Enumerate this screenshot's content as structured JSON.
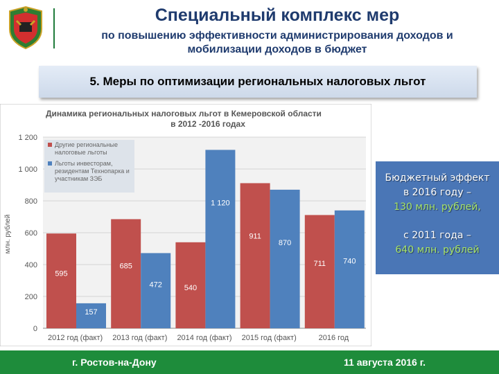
{
  "header": {
    "title": "Специальный комплекс мер",
    "subtitle": "по повышению эффективности администрирования доходов и мобилизации доходов в бюджет"
  },
  "banner": {
    "label": "5. Меры по оптимизации региональных налоговых льгот"
  },
  "chart_data": {
    "type": "bar",
    "title_line1": "Динамика региональных налоговых льгот в Кемеровской области",
    "title_line2": "в 2012 -2016 годах",
    "ylabel": "млн. рублей",
    "ylim": [
      0,
      1200
    ],
    "yticks": [
      "0",
      "200",
      "400",
      "600",
      "800",
      "1 000",
      "1 200"
    ],
    "categories": [
      "2012 год (факт)",
      "2013 год (факт)",
      "2014 год (факт)",
      "2015 год (факт)",
      "2016 год"
    ],
    "series": [
      {
        "name": "Другие региональные налоговые льготы",
        "values": [
          595,
          685,
          540,
          911,
          711
        ],
        "labels": [
          "595",
          "685",
          "540",
          "911",
          "711"
        ],
        "color": "#c0504d"
      },
      {
        "name": "Льготы инвесторам, резидентам Технопарка и участникам ЗЭБ",
        "values": [
          157,
          472,
          1120,
          870,
          740
        ],
        "labels": [
          "157",
          "472",
          "1 120",
          "870",
          "740"
        ],
        "color": "#4f81bd"
      }
    ],
    "grid": true,
    "legend_position": "top-left"
  },
  "callout": {
    "line1": "Бюджетный эффект",
    "line2": "в 2016 году –",
    "line3": "130 млн. рублей,",
    "line4": "с 2011 года –",
    "line5": "640 млн. рублей"
  },
  "footer": {
    "city": "г. Ростов-на-Дону",
    "date": "11 августа 2016 г."
  },
  "colors": {
    "footer": "#1e8c3b",
    "title": "#1f3b6e",
    "callout": "#4a76b6",
    "accent_green": "#a7e36a"
  }
}
